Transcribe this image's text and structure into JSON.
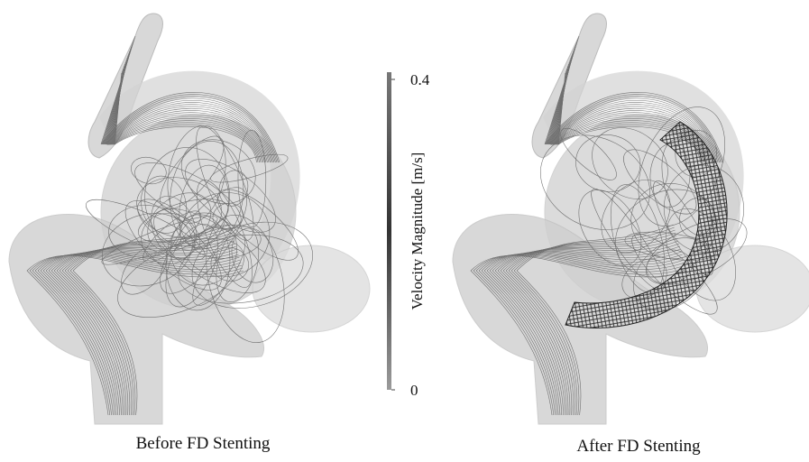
{
  "panels": [
    {
      "caption": "Before FD Stenting"
    },
    {
      "caption": "After FD Stenting"
    }
  ],
  "colorbar": {
    "title": "Velocity Magnitude [m/s]",
    "lim": [
      0,
      0.4
    ],
    "ticks": [
      0,
      0.4
    ]
  }
}
